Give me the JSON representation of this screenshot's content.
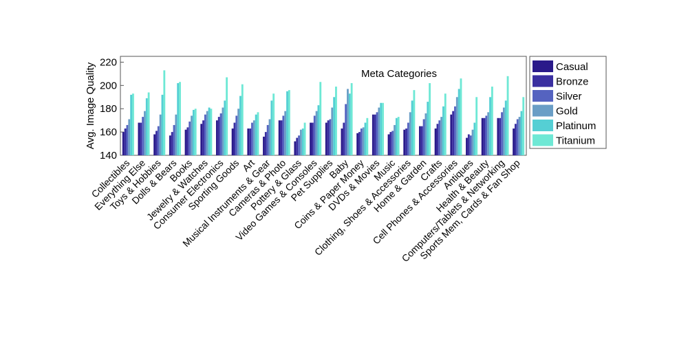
{
  "chart_data": {
    "type": "bar",
    "title": "Meta Categories",
    "xlabel": "",
    "ylabel": "Avg. Image Quality",
    "ylim": [
      140,
      225
    ],
    "yticks": [
      140,
      160,
      180,
      200,
      220
    ],
    "grid": false,
    "legend_position": "right",
    "categories": [
      "Collectibles",
      "Everything Else",
      "Toys & Hobbies",
      "Dolls & Bears",
      "Books",
      "Jewelry & Watches",
      "Consumer Electronics",
      "Sporting Goods",
      "Art",
      "Musical Instruments & Gear",
      "Cameras & Photo",
      "Pottery & Glass",
      "Video Games & Consoles",
      "Pet Supplies",
      "Baby",
      "Coins & Paper Money",
      "DVDs & Movies",
      "Music",
      "Clothing, Shoes & Accessories",
      "Home & Garden",
      "Crafts",
      "Cell Phones & Accessories",
      "Antiques",
      "Health & Beauty",
      "Computers/Tablets & Networking",
      "Sports Mem, Cards & Fan Shop"
    ],
    "series": [
      {
        "name": "Casual",
        "color": "#2a1a8a",
        "values": [
          160,
          168,
          158,
          157,
          162,
          167,
          170,
          163,
          163,
          156,
          170,
          152,
          168,
          168,
          163,
          159,
          175,
          158,
          162,
          165,
          163,
          175,
          155,
          172,
          172,
          163
        ]
      },
      {
        "name": "Bronze",
        "color": "#3a2fa0",
        "values": [
          163,
          168,
          161,
          160,
          164,
          170,
          173,
          168,
          163,
          160,
          170,
          155,
          168,
          170,
          168,
          160,
          175,
          160,
          163,
          165,
          167,
          178,
          158,
          172,
          172,
          167
        ]
      },
      {
        "name": "Silver",
        "color": "#5563c0",
        "values": [
          166,
          173,
          165,
          166,
          169,
          175,
          176,
          174,
          168,
          166,
          174,
          157,
          174,
          171,
          184,
          163,
          177,
          161,
          168,
          171,
          170,
          182,
          157,
          174,
          177,
          171
        ]
      },
      {
        "name": "Gold",
        "color": "#6a9ec6",
        "values": [
          171,
          178,
          175,
          175,
          174,
          178,
          181,
          180,
          170,
          171,
          178,
          162,
          178,
          181,
          197,
          164,
          181,
          166,
          177,
          176,
          173,
          190,
          162,
          177,
          181,
          173
        ]
      },
      {
        "name": "Platinum",
        "color": "#55cfd4",
        "values": [
          192,
          189,
          192,
          202,
          179,
          181,
          187,
          191,
          175,
          187,
          195,
          163,
          183,
          190,
          193,
          168,
          185,
          172,
          187,
          186,
          182,
          197,
          168,
          190,
          187,
          178
        ]
      },
      {
        "name": "Titanium",
        "color": "#6ee8d5",
        "values": [
          193,
          194,
          213,
          203,
          180,
          180,
          207,
          201,
          177,
          193,
          196,
          168,
          203,
          199,
          202,
          172,
          185,
          173,
          196,
          202,
          193,
          206,
          190,
          199,
          208,
          190
        ]
      }
    ]
  }
}
